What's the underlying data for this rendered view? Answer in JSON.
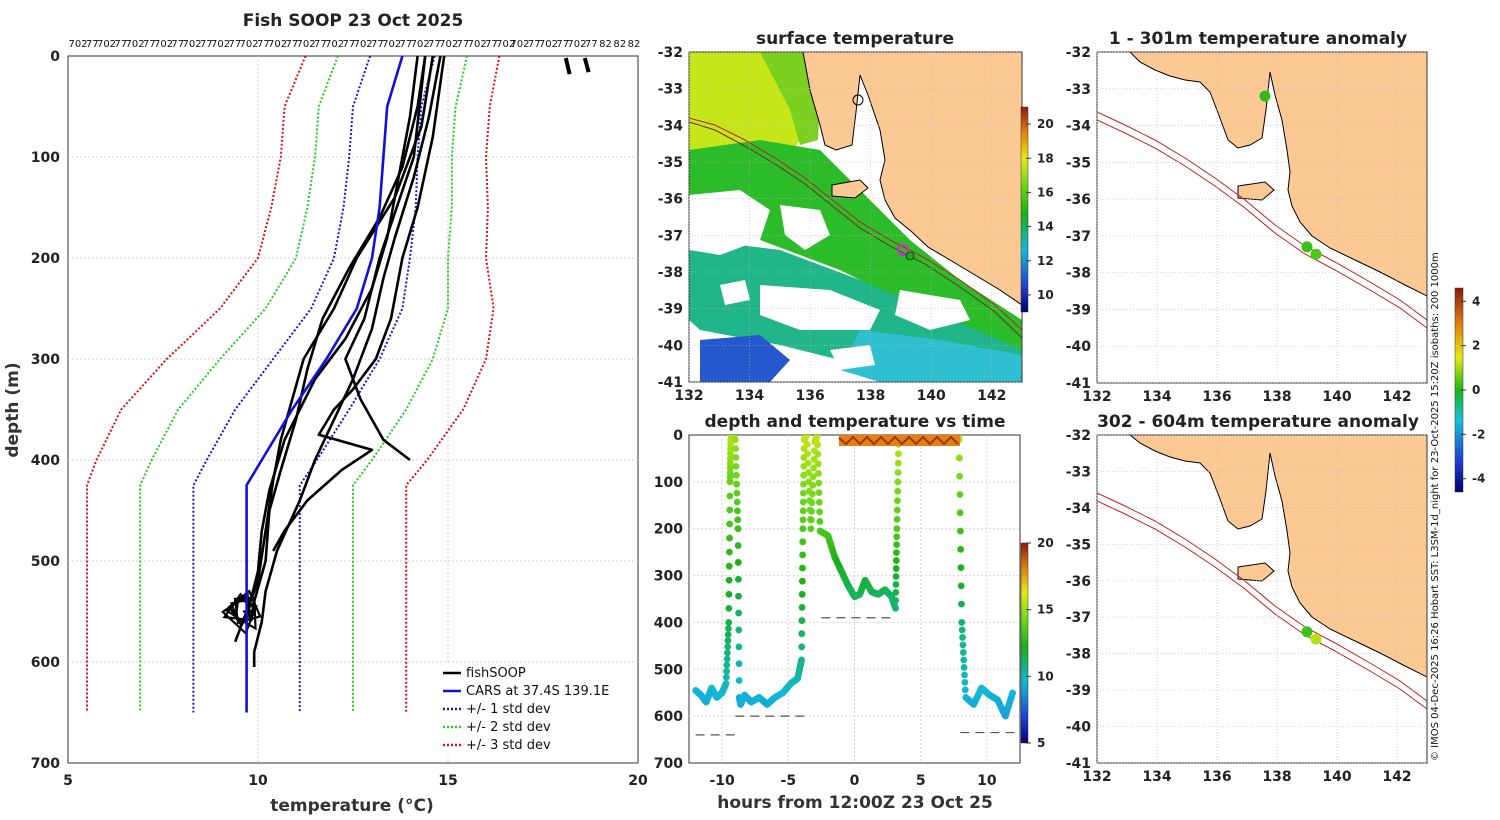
{
  "chart_data": [
    {
      "id": "profile",
      "type": "line",
      "title": "Fish SOOP 23 Oct 2025",
      "xlabel": "temperature (°C)",
      "ylabel": "depth (m)",
      "xlim": [
        5,
        20
      ],
      "ylim": [
        700,
        0
      ],
      "xticks": [
        "5",
        "10",
        "15",
        "20"
      ],
      "yticks": [
        "0",
        "100",
        "200",
        "300",
        "400",
        "500",
        "600",
        "700"
      ],
      "top_counts": [
        "702",
        "77",
        "702",
        "77",
        "702",
        "77",
        "702",
        "77",
        "702",
        "77",
        "702",
        "77",
        "702",
        "77",
        "702",
        "77",
        "702",
        "77",
        "702",
        "77",
        "702",
        "77",
        "702",
        "77",
        "702",
        "77",
        "702",
        "77",
        "702",
        "77",
        "702",
        "702",
        "77",
        "702",
        "77",
        "702",
        "77",
        "82",
        "82",
        "82"
      ],
      "legend": [
        "fishSOOP",
        "CARS at 37.4S 139.1E",
        "+/- 1 std dev",
        "+/- 2 std dev",
        "+/- 3 std dev"
      ],
      "colors": {
        "fish": "#000000",
        "cars": "#1010dd",
        "sd1": "#1515dd",
        "sd2": "#22cc22",
        "sd3": "#dd1111"
      },
      "cars_depth": [
        0,
        50,
        100,
        150,
        200,
        250,
        300,
        350,
        400,
        425,
        500,
        550,
        600,
        650
      ],
      "cars_temp": [
        13.8,
        13.4,
        13.3,
        13.2,
        13.0,
        12.6,
        11.8,
        10.9,
        10.1,
        9.7,
        9.7,
        9.7,
        9.7,
        9.7
      ],
      "cars_std": [
        0.85,
        0.9,
        0.9,
        0.95,
        1.0,
        1.2,
        1.4,
        1.5,
        1.45,
        1.4,
        1.4,
        1.4,
        1.4,
        1.4
      ],
      "fish_profiles": [
        {
          "depth": [
            0,
            60,
            120,
            180,
            230,
            280,
            320,
            380,
            430,
            470,
            510,
            540,
            560
          ],
          "temp": [
            14.2,
            14.0,
            13.7,
            13.4,
            13.0,
            12.3,
            11.5,
            10.7,
            10.3,
            10.1,
            10.0,
            9.8,
            9.7
          ]
        },
        {
          "depth": [
            0,
            50,
            110,
            160,
            210,
            260,
            310,
            360,
            410,
            450,
            500,
            540
          ],
          "temp": [
            14.4,
            14.2,
            13.8,
            13.2,
            12.4,
            11.7,
            11.3,
            11.0,
            10.6,
            10.3,
            10.2,
            9.9
          ]
        },
        {
          "depth": [
            0,
            70,
            140,
            200,
            250,
            300,
            340,
            380,
            420,
            470,
            520,
            560,
            580
          ],
          "temp": [
            14.6,
            14.3,
            13.6,
            12.6,
            12.0,
            11.2,
            10.9,
            10.6,
            10.4,
            10.2,
            10.0,
            9.6,
            9.4
          ]
        },
        {
          "depth": [
            0,
            60,
            120,
            180,
            220,
            270,
            320,
            360,
            400,
            440,
            490,
            530,
            560,
            590,
            605
          ],
          "temp": [
            14.8,
            14.5,
            14.1,
            13.6,
            13.3,
            13.0,
            12.5,
            12.0,
            11.5,
            11.1,
            10.5,
            10.2,
            10.1,
            9.9,
            9.9
          ]
        },
        {
          "depth": [
            0,
            80,
            150,
            200,
            260,
            300,
            330,
            350,
            375,
            390,
            410,
            440,
            470,
            490
          ],
          "temp": [
            14.9,
            14.6,
            14.2,
            13.8,
            13.5,
            13.1,
            12.5,
            12.0,
            11.6,
            13.0,
            12.2,
            11.3,
            10.7,
            10.4
          ]
        },
        {
          "depth": [
            0,
            100,
            200,
            260,
            300,
            340,
            380,
            400
          ],
          "temp": [
            14.4,
            14.1,
            13.2,
            12.8,
            12.3,
            12.7,
            13.3,
            14.0
          ]
        }
      ]
    },
    {
      "id": "surface",
      "type": "heatmap",
      "title": "surface temperature",
      "xlim": [
        132,
        143
      ],
      "ylim": [
        -41,
        -32
      ],
      "xticks": [
        "132",
        "134",
        "136",
        "138",
        "140",
        "142"
      ],
      "yticks": [
        "-32",
        "-33",
        "-34",
        "-35",
        "-36",
        "-37",
        "-38",
        "-39",
        "-40",
        "-41"
      ],
      "colorbar_ticks": [
        "10",
        "12",
        "14",
        "16",
        "18",
        "20"
      ],
      "colorbar_range": [
        9,
        21
      ]
    },
    {
      "id": "time",
      "type": "scatter",
      "title": "depth and temperature vs time",
      "xlabel": "hours from 12:00Z 23 Oct 25",
      "xlim": [
        -12.5,
        12.5
      ],
      "ylim": [
        700,
        0
      ],
      "xticks": [
        "-10",
        "-5",
        "0",
        "5",
        "10"
      ],
      "yticks": [
        "0",
        "100",
        "200",
        "300",
        "400",
        "500",
        "600",
        "700"
      ],
      "colorbar_ticks": [
        "5",
        "10",
        "15",
        "20"
      ],
      "colorbar_range": [
        5,
        20
      ],
      "track_hours": [
        -12.0,
        -11.6,
        -11.2,
        -10.8,
        -10.4,
        -10.0,
        -9.7,
        -9.5,
        -9.4,
        -9.35,
        -9.2,
        -9.0,
        -8.8,
        -8.7,
        -8.6,
        -8.3,
        -7.8,
        -7.2,
        -6.6,
        -6.0,
        -5.4,
        -4.8,
        -4.3,
        -4.0,
        -3.9,
        -3.8,
        -3.6,
        -3.3,
        -3.0,
        -2.8,
        -2.6,
        -2.0,
        -1.5,
        -1.0,
        -0.5,
        0.0,
        0.4,
        0.8,
        1.3,
        1.8,
        2.3,
        2.8,
        3.1,
        3.2,
        3.35,
        3.6,
        5.0,
        6.5,
        7.8,
        7.9,
        8.1,
        8.4,
        9.0,
        9.6,
        10.2,
        10.8,
        11.4,
        12.0
      ],
      "track_depth": [
        545,
        555,
        570,
        540,
        560,
        550,
        530,
        400,
        100,
        0,
        0,
        10,
        200,
        560,
        575,
        555,
        570,
        560,
        575,
        560,
        550,
        530,
        520,
        480,
        200,
        10,
        0,
        200,
        15,
        0,
        205,
        215,
        260,
        290,
        320,
        345,
        340,
        310,
        335,
        340,
        330,
        345,
        370,
        200,
        0,
        10,
        0,
        5,
        0,
        10,
        400,
        560,
        575,
        540,
        555,
        565,
        600,
        545
      ],
      "track_temp": [
        9.5,
        9.4,
        9.3,
        9.5,
        9.4,
        9.6,
        10.0,
        11.5,
        14.0,
        15.5,
        15.4,
        15.0,
        13.0,
        9.3,
        9.2,
        9.4,
        9.3,
        9.4,
        9.2,
        9.4,
        9.5,
        9.8,
        10.0,
        10.5,
        13.5,
        15.5,
        15.7,
        13.8,
        15.5,
        15.6,
        13.5,
        13.2,
        12.5,
        12.0,
        11.5,
        11.2,
        11.3,
        11.8,
        11.4,
        11.2,
        11.3,
        11.2,
        10.8,
        13.5,
        15.6,
        15.4,
        15.5,
        15.3,
        15.4,
        15.2,
        11.0,
        9.5,
        9.2,
        9.6,
        9.4,
        9.3,
        9.0,
        9.5
      ],
      "bottom_segments": [
        {
          "from": -12.0,
          "to": -9.0,
          "depth": 640
        },
        {
          "from": -9.0,
          "to": -3.5,
          "depth": 600
        },
        {
          "from": -2.5,
          "to": 3.0,
          "depth": 390
        },
        {
          "from": 8.0,
          "to": 12.5,
          "depth": 635
        }
      ]
    },
    {
      "id": "anom1",
      "type": "heatmap",
      "title": "1 - 301m temperature anomaly",
      "xlim": [
        132,
        143
      ],
      "ylim": [
        -41,
        -32
      ],
      "xticks": [
        "132",
        "134",
        "136",
        "138",
        "140",
        "142"
      ],
      "yticks": [
        "-32",
        "-33",
        "-34",
        "-35",
        "-36",
        "-37",
        "-38",
        "-39",
        "-40",
        "-41"
      ]
    },
    {
      "id": "anom2",
      "type": "heatmap",
      "title": "302 - 604m temperature anomaly",
      "xlim": [
        132,
        143
      ],
      "ylim": [
        -41,
        -32
      ],
      "xticks": [
        "132",
        "134",
        "136",
        "138",
        "140",
        "142"
      ],
      "yticks": [
        "-32",
        "-33",
        "-34",
        "-35",
        "-36",
        "-37",
        "-38",
        "-39",
        "-40",
        "-41"
      ],
      "colorbar_ticks": [
        "-4",
        "-2",
        "0",
        "2",
        "4"
      ],
      "colorbar_range": [
        -4.6,
        4.6
      ]
    }
  ],
  "map": {
    "land_color": "#fcc894",
    "coast_color": "#000000",
    "isobath_color": "#bb2222",
    "anom_points_1": [
      {
        "lon": 137.6,
        "lat": -33.2,
        "value": 0.2
      },
      {
        "lon": 139.0,
        "lat": -37.3,
        "value": 0.3
      },
      {
        "lon": 139.3,
        "lat": -37.5,
        "value": 0.6
      }
    ],
    "anom_points_2": [
      {
        "lon": 139.0,
        "lat": -37.4,
        "value": 0.4
      },
      {
        "lon": 139.3,
        "lat": -37.6,
        "value": 1.8
      }
    ]
  },
  "footer": {
    "credit": "© IMOS 04-Dec-2025 16:26 Hobart SST: L3SM-1d_night for 23-Oct-2025 15:20Z isobaths: 200  1000m"
  }
}
